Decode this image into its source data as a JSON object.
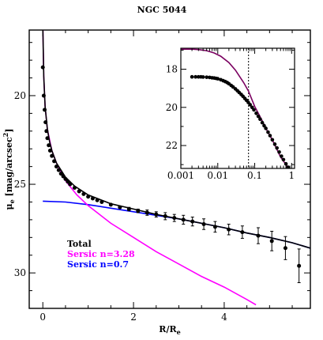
{
  "chart_data": {
    "title": "NGC 5044",
    "xlabel": "R/R_e",
    "ylabel": "μ_e [mag/arcsec²]",
    "legend": {
      "position": "bottom-left",
      "entries": [
        {
          "label": "Total",
          "color": "#000000"
        },
        {
          "label": "Sersic n=3.28",
          "color": "#ff00ff"
        },
        {
          "label": "Sersic n=0.7",
          "color": "#0000ff"
        }
      ]
    },
    "main": {
      "type": "scatter",
      "xlim": [
        -0.3,
        5.9
      ],
      "ylim": [
        32,
        16.3
      ],
      "y_inverted": true,
      "xticks": [
        0,
        2,
        4
      ],
      "yticks": [
        20,
        25,
        30
      ],
      "data_points": {
        "x": [
          0.0,
          0.02,
          0.04,
          0.06,
          0.08,
          0.1,
          0.13,
          0.16,
          0.2,
          0.25,
          0.3,
          0.35,
          0.4,
          0.45,
          0.5,
          0.55,
          0.6,
          0.7,
          0.8,
          0.9,
          1.0,
          1.1,
          1.2,
          1.3,
          1.5,
          1.7,
          1.9,
          2.1,
          2.3,
          2.5,
          2.7,
          2.9,
          3.1,
          3.3,
          3.55,
          3.8,
          4.1,
          4.4,
          4.75,
          5.05,
          5.35,
          5.65
        ],
        "y": [
          18.4,
          20.0,
          20.8,
          21.5,
          22.0,
          22.4,
          22.8,
          23.1,
          23.4,
          23.7,
          24.0,
          24.2,
          24.4,
          24.55,
          24.7,
          24.85,
          25.0,
          25.2,
          25.4,
          25.55,
          25.7,
          25.8,
          25.9,
          26.0,
          26.15,
          26.3,
          26.4,
          26.5,
          26.6,
          26.7,
          26.8,
          26.9,
          27.0,
          27.1,
          27.25,
          27.4,
          27.55,
          27.7,
          27.9,
          28.2,
          28.6,
          29.6
        ],
        "yerr": [
          0,
          0,
          0,
          0,
          0,
          0,
          0,
          0,
          0,
          0,
          0,
          0,
          0,
          0,
          0,
          0,
          0,
          0,
          0,
          0,
          0,
          0,
          0,
          0,
          0,
          0,
          0.1,
          0.1,
          0.15,
          0.15,
          0.2,
          0.2,
          0.25,
          0.25,
          0.3,
          0.3,
          0.3,
          0.35,
          0.45,
          0.55,
          0.65,
          0.95
        ]
      },
      "series": [
        {
          "name": "Total",
          "color": "#000000",
          "x": [
            0.0,
            0.02,
            0.05,
            0.1,
            0.15,
            0.2,
            0.3,
            0.4,
            0.5,
            0.7,
            1.0,
            1.5,
            2.0,
            2.5,
            3.0,
            3.5,
            4.0,
            4.5,
            5.0,
            5.5,
            5.9
          ],
          "y": [
            16.0,
            18.9,
            20.6,
            21.9,
            22.6,
            23.1,
            23.8,
            24.2,
            24.6,
            25.1,
            25.6,
            26.1,
            26.4,
            26.7,
            26.95,
            27.2,
            27.45,
            27.75,
            28.0,
            28.3,
            28.6
          ]
        },
        {
          "name": "Sersic n=3.28",
          "color": "#ff00ff",
          "x": [
            0.0,
            0.02,
            0.05,
            0.1,
            0.2,
            0.3,
            0.5,
            0.75,
            1.0,
            1.5,
            2.0,
            2.5,
            3.0,
            3.5,
            4.0,
            4.5,
            4.7
          ],
          "y": [
            16.0,
            18.9,
            20.6,
            21.9,
            23.1,
            23.8,
            24.8,
            25.6,
            26.2,
            27.2,
            28.0,
            28.8,
            29.5,
            30.2,
            30.8,
            31.5,
            31.8
          ]
        },
        {
          "name": "Sersic n=0.7",
          "color": "#0000ff",
          "x": [
            0.0,
            0.5,
            1.0,
            1.5,
            2.0,
            2.5,
            3.0,
            3.5,
            4.0,
            4.5,
            5.0,
            5.5,
            5.9
          ],
          "y": [
            25.95,
            26.0,
            26.15,
            26.35,
            26.55,
            26.75,
            26.95,
            27.2,
            27.45,
            27.75,
            28.0,
            28.3,
            28.6
          ]
        }
      ]
    },
    "inset": {
      "type": "scatter",
      "x_scale": "log",
      "xlim": [
        0.001,
        1.2
      ],
      "ylim": [
        23.2,
        16.9
      ],
      "y_inverted": true,
      "xticks": [
        0.001,
        0.01,
        0.1,
        1
      ],
      "xtick_labels": [
        "0.001",
        "0.01",
        "0.1",
        "1"
      ],
      "yticks": [
        18,
        20,
        22
      ],
      "vline_x": 0.068,
      "data_points": {
        "x": [
          0.002,
          0.0025,
          0.003,
          0.0035,
          0.004,
          0.005,
          0.006,
          0.007,
          0.008,
          0.009,
          0.01,
          0.012,
          0.014,
          0.016,
          0.018,
          0.02,
          0.023,
          0.026,
          0.03,
          0.034,
          0.038,
          0.043,
          0.048,
          0.054,
          0.06,
          0.067,
          0.075,
          0.085,
          0.095,
          0.11,
          0.125,
          0.14,
          0.16,
          0.18,
          0.2,
          0.23,
          0.26,
          0.3,
          0.35,
          0.4,
          0.46,
          0.53,
          0.6,
          0.7,
          0.8,
          0.9,
          1.0
        ],
        "y": [
          18.4,
          18.4,
          18.4,
          18.4,
          18.41,
          18.42,
          18.43,
          18.45,
          18.46,
          18.48,
          18.5,
          18.55,
          18.6,
          18.65,
          18.7,
          18.76,
          18.85,
          18.93,
          19.03,
          19.13,
          19.22,
          19.32,
          19.42,
          19.53,
          19.63,
          19.74,
          19.86,
          20.0,
          20.13,
          20.31,
          20.47,
          20.62,
          20.8,
          20.96,
          21.1,
          21.3,
          21.48,
          21.7,
          21.93,
          22.13,
          22.34,
          22.56,
          22.74,
          22.96,
          23.14,
          23.3,
          23.44
        ]
      },
      "series": [
        {
          "name": "Total",
          "color": "#7a0060",
          "x": [
            0.001,
            0.002,
            0.003,
            0.005,
            0.008,
            0.012,
            0.02,
            0.03,
            0.05,
            0.068,
            0.1,
            0.15,
            0.2,
            0.3,
            0.5,
            0.7,
            1.0
          ],
          "y": [
            16.95,
            16.95,
            16.97,
            17.03,
            17.15,
            17.32,
            17.65,
            18.05,
            18.7,
            19.15,
            19.95,
            20.6,
            21.1,
            21.7,
            22.6,
            23.0,
            23.45
          ]
        }
      ]
    }
  }
}
